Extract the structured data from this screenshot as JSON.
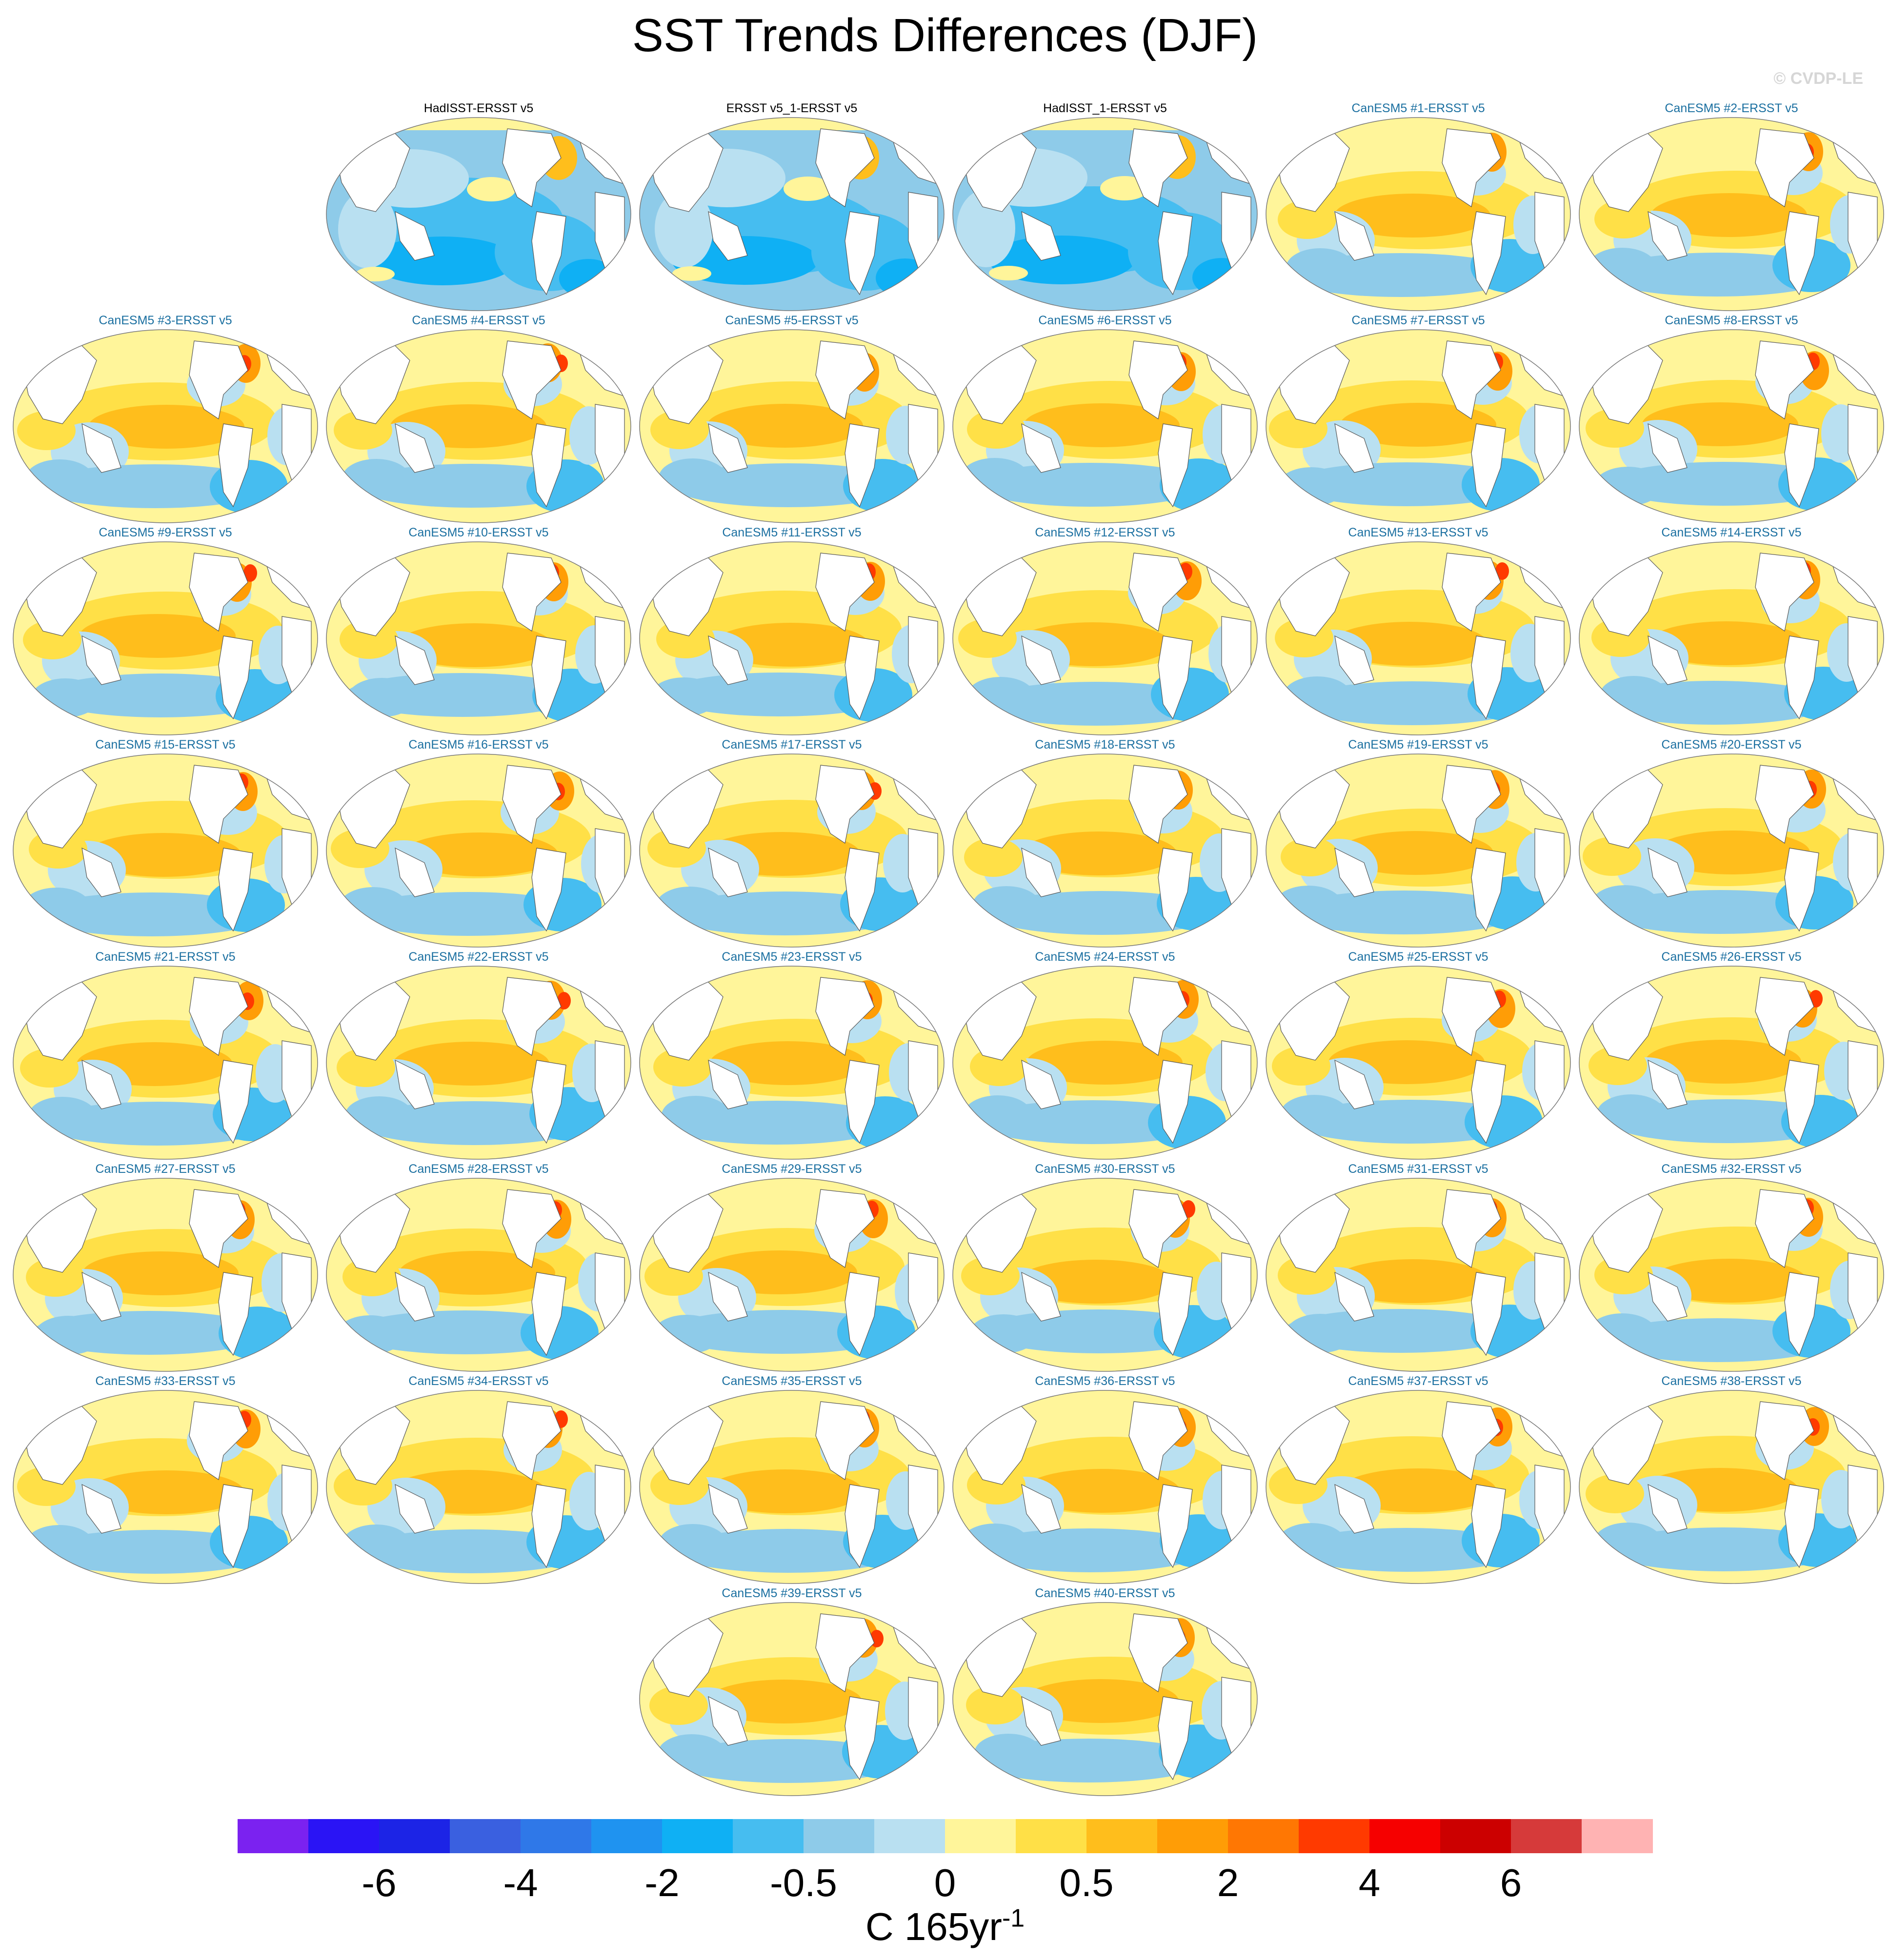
{
  "title": "SST Trends Differences (DJF)",
  "watermark": "© CVDP-LE",
  "colorbar": {
    "unit_base": "C 165yr",
    "unit_exponent": "-1",
    "colors": [
      "#7b22f0",
      "#2a14f5",
      "#1c24e6",
      "#3a60e0",
      "#2f78e8",
      "#1f93f0",
      "#0fb0f4",
      "#46bdf0",
      "#8ecbe9",
      "#b9e0f1",
      "#fff59a",
      "#ffe047",
      "#ffbe1c",
      "#ff9d06",
      "#ff7703",
      "#ff3a00",
      "#f60000",
      "#cc0000",
      "#d63a3a",
      "#ffb3b3"
    ],
    "tick_labels": [
      "-6",
      "-4",
      "-2",
      "-0.5",
      "0",
      "0.5",
      "2",
      "4",
      "6"
    ]
  },
  "chart_data": {
    "type": "map_panels",
    "projection": "Robinson (Pacific-centered)",
    "season": "DJF",
    "reference": "ERSST v5",
    "panels": [
      {
        "label": "HadISST-ERSST v5",
        "kind": "obs",
        "pattern": "cool"
      },
      {
        "label": "ERSST v5_1-ERSST v5",
        "kind": "obs",
        "pattern": "cool"
      },
      {
        "label": "HadISST_1-ERSST v5",
        "kind": "obs",
        "pattern": "cool"
      },
      {
        "label": "CanESM5 #1-ERSST v5",
        "kind": "model",
        "pattern": "warm"
      },
      {
        "label": "CanESM5 #2-ERSST v5",
        "kind": "model",
        "pattern": "warm"
      },
      {
        "label": "CanESM5 #3-ERSST v5",
        "kind": "model",
        "pattern": "warm"
      },
      {
        "label": "CanESM5 #4-ERSST v5",
        "kind": "model",
        "pattern": "warm"
      },
      {
        "label": "CanESM5 #5-ERSST v5",
        "kind": "model",
        "pattern": "warm"
      },
      {
        "label": "CanESM5 #6-ERSST v5",
        "kind": "model",
        "pattern": "warm"
      },
      {
        "label": "CanESM5 #7-ERSST v5",
        "kind": "model",
        "pattern": "warm"
      },
      {
        "label": "CanESM5 #8-ERSST v5",
        "kind": "model",
        "pattern": "warm"
      },
      {
        "label": "CanESM5 #9-ERSST v5",
        "kind": "model",
        "pattern": "warm"
      },
      {
        "label": "CanESM5 #10-ERSST v5",
        "kind": "model",
        "pattern": "warm"
      },
      {
        "label": "CanESM5 #11-ERSST v5",
        "kind": "model",
        "pattern": "warm"
      },
      {
        "label": "CanESM5 #12-ERSST v5",
        "kind": "model",
        "pattern": "warm"
      },
      {
        "label": "CanESM5 #13-ERSST v5",
        "kind": "model",
        "pattern": "warm"
      },
      {
        "label": "CanESM5 #14-ERSST v5",
        "kind": "model",
        "pattern": "warm"
      },
      {
        "label": "CanESM5 #15-ERSST v5",
        "kind": "model",
        "pattern": "warm"
      },
      {
        "label": "CanESM5 #16-ERSST v5",
        "kind": "model",
        "pattern": "warm"
      },
      {
        "label": "CanESM5 #17-ERSST v5",
        "kind": "model",
        "pattern": "warm"
      },
      {
        "label": "CanESM5 #18-ERSST v5",
        "kind": "model",
        "pattern": "warm"
      },
      {
        "label": "CanESM5 #19-ERSST v5",
        "kind": "model",
        "pattern": "warm"
      },
      {
        "label": "CanESM5 #20-ERSST v5",
        "kind": "model",
        "pattern": "warm"
      },
      {
        "label": "CanESM5 #21-ERSST v5",
        "kind": "model",
        "pattern": "warm"
      },
      {
        "label": "CanESM5 #22-ERSST v5",
        "kind": "model",
        "pattern": "warm"
      },
      {
        "label": "CanESM5 #23-ERSST v5",
        "kind": "model",
        "pattern": "warm"
      },
      {
        "label": "CanESM5 #24-ERSST v5",
        "kind": "model",
        "pattern": "warm"
      },
      {
        "label": "CanESM5 #25-ERSST v5",
        "kind": "model",
        "pattern": "warm"
      },
      {
        "label": "CanESM5 #26-ERSST v5",
        "kind": "model",
        "pattern": "warm"
      },
      {
        "label": "CanESM5 #27-ERSST v5",
        "kind": "model",
        "pattern": "warm"
      },
      {
        "label": "CanESM5 #28-ERSST v5",
        "kind": "model",
        "pattern": "warm"
      },
      {
        "label": "CanESM5 #29-ERSST v5",
        "kind": "model",
        "pattern": "warm"
      },
      {
        "label": "CanESM5 #30-ERSST v5",
        "kind": "model",
        "pattern": "warm"
      },
      {
        "label": "CanESM5 #31-ERSST v5",
        "kind": "model",
        "pattern": "warm"
      },
      {
        "label": "CanESM5 #32-ERSST v5",
        "kind": "model",
        "pattern": "warm"
      },
      {
        "label": "CanESM5 #33-ERSST v5",
        "kind": "model",
        "pattern": "warm"
      },
      {
        "label": "CanESM5 #34-ERSST v5",
        "kind": "model",
        "pattern": "warm"
      },
      {
        "label": "CanESM5 #35-ERSST v5",
        "kind": "model",
        "pattern": "warm"
      },
      {
        "label": "CanESM5 #36-ERSST v5",
        "kind": "model",
        "pattern": "warm"
      },
      {
        "label": "CanESM5 #37-ERSST v5",
        "kind": "model",
        "pattern": "warm"
      },
      {
        "label": "CanESM5 #38-ERSST v5",
        "kind": "model",
        "pattern": "warm"
      },
      {
        "label": "CanESM5 #39-ERSST v5",
        "kind": "model",
        "pattern": "warm"
      },
      {
        "label": "CanESM5 #40-ERSST v5",
        "kind": "model",
        "pattern": "warm"
      }
    ]
  }
}
